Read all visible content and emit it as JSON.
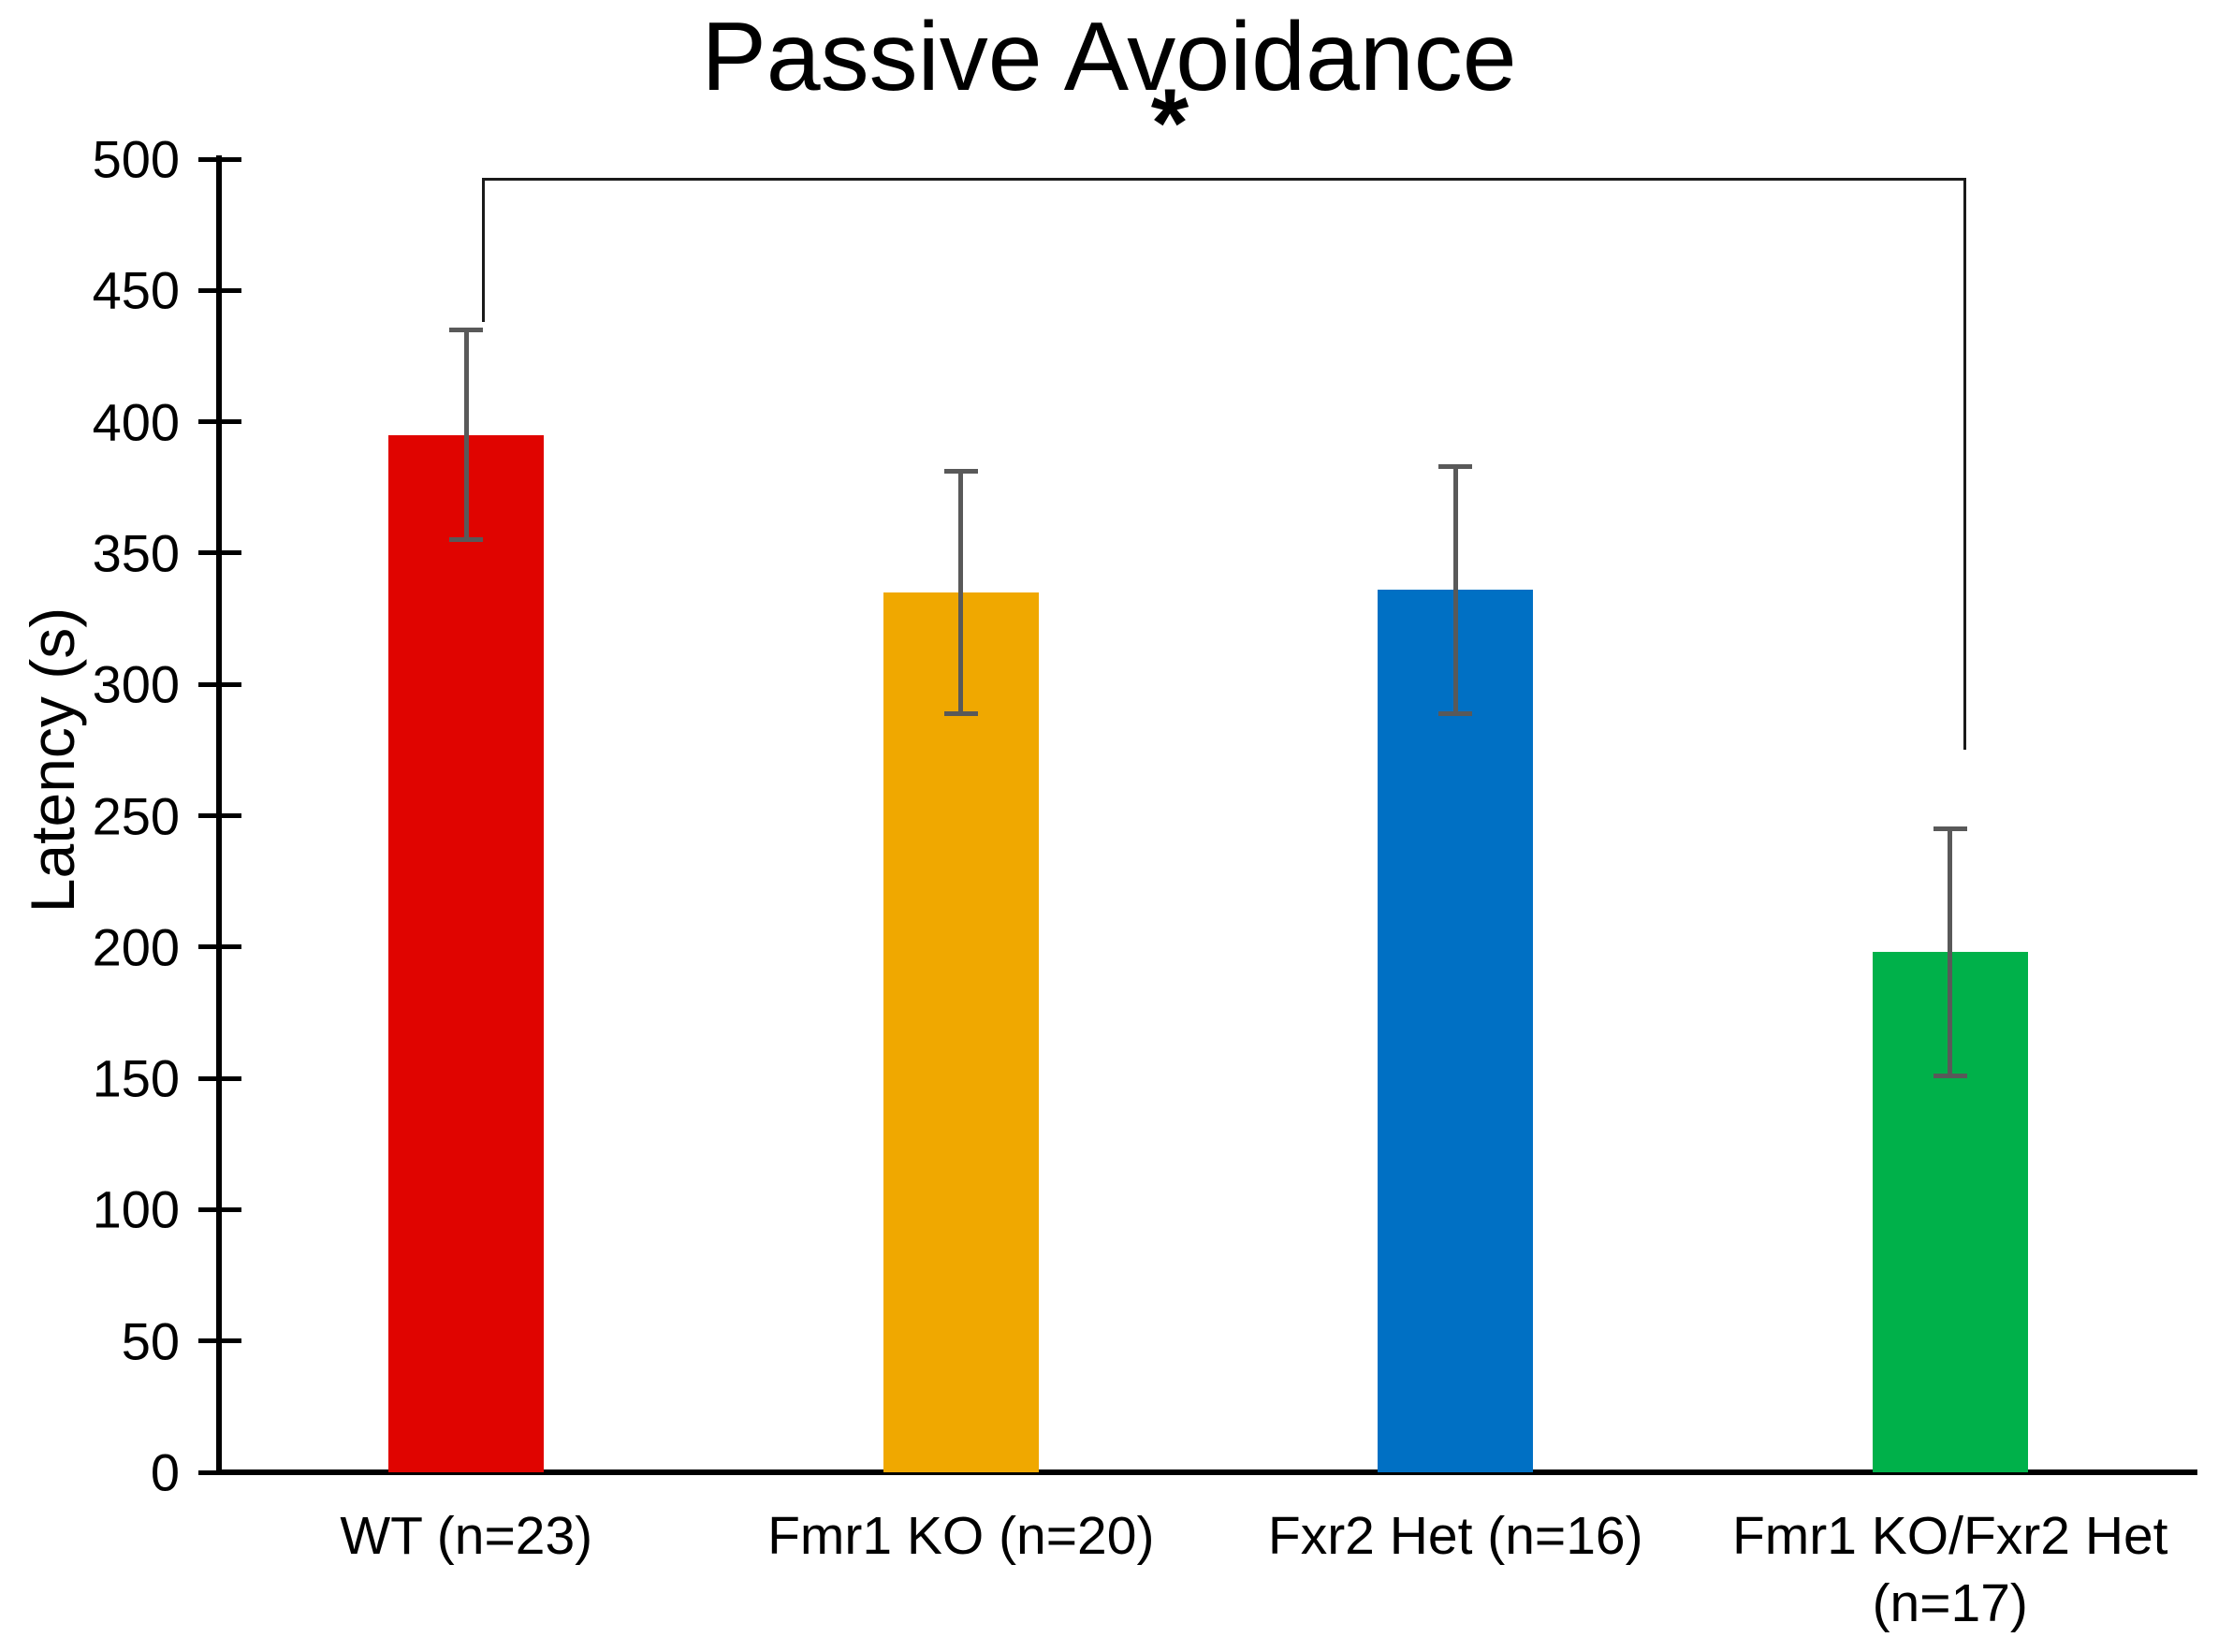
{
  "chart_data": {
    "type": "bar",
    "title": "Passive Avoidance",
    "xlabel": "",
    "ylabel": "Latency (s)",
    "ylim": [
      0,
      500
    ],
    "ytick_step": 50,
    "ytick_labels": [
      "0",
      "50",
      "100",
      "150",
      "200",
      "250",
      "300",
      "350",
      "400",
      "450",
      "500"
    ],
    "grid": false,
    "legend": null,
    "categories": [
      "WT (n=23)",
      "Fmr1 KO (n=20)",
      "Fxr2 Het (n=16)",
      "Fmr1 KO/Fxr2 Het\n(n=17)"
    ],
    "values": [
      395,
      335,
      336,
      198
    ],
    "errors": [
      40,
      46,
      47,
      47
    ],
    "bar_colors": [
      "#e00400",
      "#f0a800",
      "#0070c4",
      "#00b14a"
    ],
    "error_bar_color": "#595959",
    "axis_color": "#000000",
    "significance": {
      "label": "*",
      "from_index": 0,
      "to_index": 3,
      "bracket_y_value": 493,
      "left_leg_bottom_value": 438,
      "right_leg_bottom_value": 275
    }
  }
}
